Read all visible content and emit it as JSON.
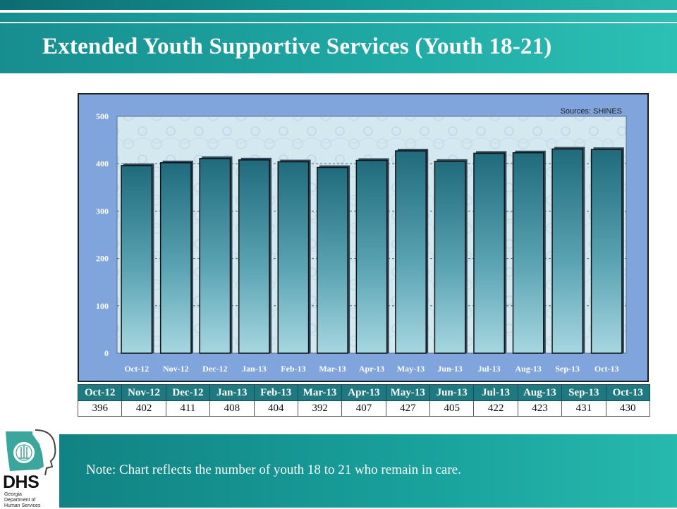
{
  "slide": {
    "title": "Extended Youth Supportive Services (Youth 18-21)",
    "note": "Note: Chart reflects the number of youth 18 to 21 who remain in care."
  },
  "logo": {
    "abbr": "DHS",
    "subtitle": "Georgia Department of Human Services"
  },
  "colors": {
    "header_teal": "#1da6a2",
    "chart_background": "#7fa5dc",
    "bar_top": "#1f6b7c",
    "bar_bottom": "#a6d7e0",
    "table_header": "#1e7a80"
  },
  "chart_data": {
    "type": "bar",
    "source_note": "Sources: SHINES",
    "categories": [
      "Oct-12",
      "Nov-12",
      "Dec-12",
      "Jan-13",
      "Feb-13",
      "Mar-13",
      "Apr-13",
      "May-13",
      "Jun-13",
      "Jul-13",
      "Aug-13",
      "Sep-13",
      "Oct-13"
    ],
    "values": [
      396,
      402,
      411,
      408,
      404,
      392,
      407,
      427,
      405,
      422,
      423,
      431,
      430
    ],
    "ylim": [
      0,
      500
    ],
    "yticks": [
      0,
      100,
      200,
      300,
      400,
      500
    ],
    "grid": true,
    "legend": "none"
  }
}
